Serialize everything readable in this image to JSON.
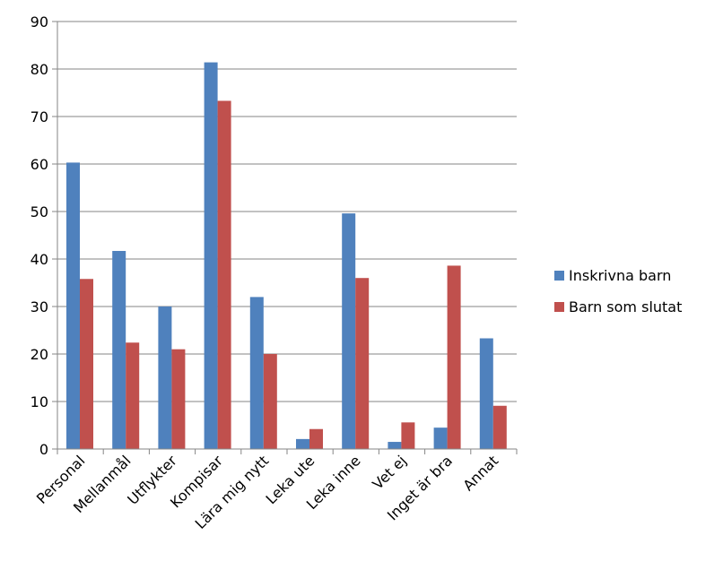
{
  "chart_data": {
    "type": "bar",
    "title": "",
    "xlabel": "",
    "ylabel": "",
    "ylim": [
      0,
      90
    ],
    "yticks": [
      0,
      10,
      20,
      30,
      40,
      50,
      60,
      70,
      80,
      90
    ],
    "grid": true,
    "legend_position": "right",
    "categories": [
      "Personal",
      "Mellanmål",
      "Utflykter",
      "Kompisar",
      "Lära mig nytt",
      "Leka ute",
      "Leka inne",
      "Vet ej",
      "Inget är bra",
      "Annat"
    ],
    "series": [
      {
        "name": "Inskrivna barn",
        "color": "#4F81BD",
        "values": [
          60.3,
          41.7,
          30.0,
          81.4,
          32.0,
          2.1,
          49.6,
          1.5,
          4.5,
          23.3
        ]
      },
      {
        "name": "Barn som slutat",
        "color": "#C0504D",
        "values": [
          35.8,
          22.4,
          21.0,
          73.3,
          20.0,
          4.2,
          36.0,
          5.6,
          38.6,
          9.1
        ]
      }
    ]
  }
}
